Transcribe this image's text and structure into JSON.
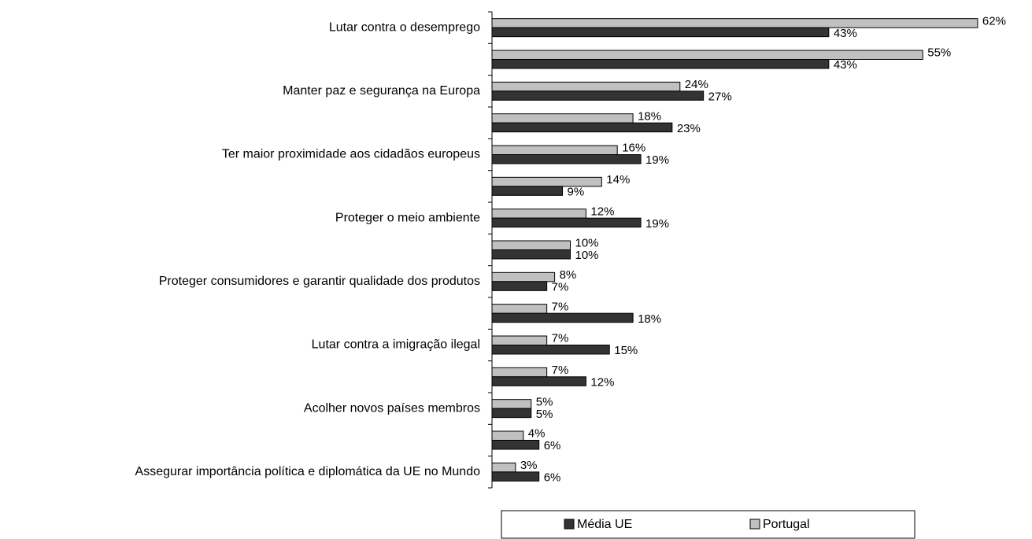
{
  "chart_data": {
    "type": "bar",
    "orientation": "horizontal",
    "categories": [
      "Lutar contra o desemprego",
      null,
      "Manter paz e segurança na Europa",
      null,
      "Ter maior proximidade aos cidadãos europeus",
      null,
      "Proteger o meio ambiente",
      null,
      "Proteger consumidores e garantir qualidade dos produtos",
      null,
      "Lutar contra a imigração ilegal",
      null,
      "Acolher novos países membros",
      null,
      "Assegurar importância política e diplomática da UE no Mundo"
    ],
    "series": [
      {
        "name": "Média UE",
        "color": "#333333",
        "values": [
          43,
          43,
          27,
          23,
          19,
          9,
          19,
          10,
          7,
          18,
          15,
          12,
          5,
          6,
          6
        ],
        "value_labels": [
          "43%",
          "43%",
          "27%",
          "23%",
          "19%",
          "9%",
          "19%",
          "10%",
          "7%",
          "18%",
          "15%",
          "12%",
          "5%",
          "6%",
          "6%"
        ]
      },
      {
        "name": "Portugal",
        "color": "#c0c0c0",
        "values": [
          62,
          55,
          24,
          18,
          16,
          14,
          12,
          10,
          8,
          7,
          7,
          7,
          5,
          4,
          3
        ],
        "value_labels": [
          "62%",
          "55%",
          "24%",
          "18%",
          "16%",
          "14%",
          "12%",
          "10%",
          "8%",
          "7%",
          "7%",
          "7%",
          "5%",
          "4%",
          "3%"
        ]
      }
    ],
    "legend": "bottom"
  }
}
